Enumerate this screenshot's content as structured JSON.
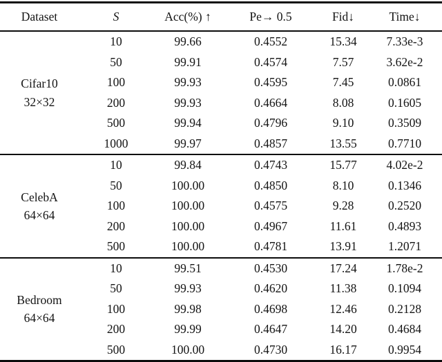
{
  "table": {
    "columns": {
      "dataset": "Dataset",
      "s": "S",
      "acc": "Acc(%) ↑",
      "pe": "Pe→ 0.5",
      "fid": "Fid↓",
      "time": "Time↓"
    },
    "groups": [
      {
        "dataset": "Cifar10",
        "resolution": "32×32",
        "rows": [
          {
            "s": "10",
            "acc": "99.66",
            "pe": "0.4552",
            "fid": "15.34",
            "time": "7.33e-3"
          },
          {
            "s": "50",
            "acc": "99.91",
            "pe": "0.4574",
            "fid": "7.57",
            "time": "3.62e-2"
          },
          {
            "s": "100",
            "acc": "99.93",
            "pe": "0.4595",
            "fid": "7.45",
            "time": "0.0861"
          },
          {
            "s": "200",
            "acc": "99.93",
            "pe": "0.4664",
            "fid": "8.08",
            "time": "0.1605"
          },
          {
            "s": "500",
            "acc": "99.94",
            "pe": "0.4796",
            "fid": "9.10",
            "time": "0.3509"
          },
          {
            "s": "1000",
            "acc": "99.97",
            "pe": "0.4857",
            "fid": "13.55",
            "time": "0.7710"
          }
        ]
      },
      {
        "dataset": "CelebA",
        "resolution": "64×64",
        "rows": [
          {
            "s": "10",
            "acc": "99.84",
            "pe": "0.4743",
            "fid": "15.77",
            "time": "4.02e-2"
          },
          {
            "s": "50",
            "acc": "100.00",
            "pe": "0.4850",
            "fid": "8.10",
            "time": "0.1346"
          },
          {
            "s": "100",
            "acc": "100.00",
            "pe": "0.4575",
            "fid": "9.28",
            "time": "0.2520"
          },
          {
            "s": "200",
            "acc": "100.00",
            "pe": "0.4967",
            "fid": "11.61",
            "time": "0.4893"
          },
          {
            "s": "500",
            "acc": "100.00",
            "pe": "0.4781",
            "fid": "13.91",
            "time": "1.2071"
          }
        ]
      },
      {
        "dataset": "Bedroom",
        "resolution": "64×64",
        "rows": [
          {
            "s": "10",
            "acc": "99.51",
            "pe": "0.4530",
            "fid": "17.24",
            "time": "1.78e-2"
          },
          {
            "s": "50",
            "acc": "99.93",
            "pe": "0.4620",
            "fid": "11.38",
            "time": "0.1094"
          },
          {
            "s": "100",
            "acc": "99.98",
            "pe": "0.4698",
            "fid": "12.46",
            "time": "0.2128"
          },
          {
            "s": "200",
            "acc": "99.99",
            "pe": "0.4647",
            "fid": "14.20",
            "time": "0.4684"
          },
          {
            "s": "500",
            "acc": "100.00",
            "pe": "0.4730",
            "fid": "16.17",
            "time": "0.9954"
          }
        ]
      }
    ]
  }
}
